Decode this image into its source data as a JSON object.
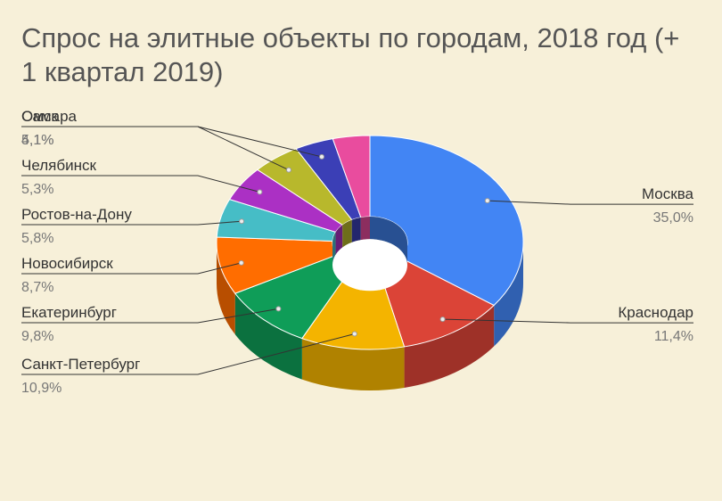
{
  "chart_data": {
    "type": "pie",
    "variant": "3d-donut",
    "title": "Спрос на элитные объекты по городам, 2018 год (+ 1 квартал 2019)",
    "slices": [
      {
        "label": "Москва",
        "value": 35.0,
        "display": "35,0%",
        "color": "#4285f4"
      },
      {
        "label": "Краснодар",
        "value": 11.4,
        "display": "11,4%",
        "color": "#db4437"
      },
      {
        "label": "Санкт-Петербург",
        "value": 10.9,
        "display": "10,9%",
        "color": "#f4b400"
      },
      {
        "label": "Екатеринбург",
        "value": 9.8,
        "display": "9,8%",
        "color": "#0f9d58"
      },
      {
        "label": "Новосибирск",
        "value": 8.7,
        "display": "8,7%",
        "color": "#ff6d00"
      },
      {
        "label": "Ростов-на-Дону",
        "value": 5.8,
        "display": "5,8%",
        "color": "#46bdc6"
      },
      {
        "label": "Челябинск",
        "value": 5.3,
        "display": "5,3%",
        "color": "#ab30c4"
      },
      {
        "label": "Самара",
        "value": 5.1,
        "display": "5,1%",
        "color": "#b8b82c"
      },
      {
        "label": "Омск",
        "value": 4.1,
        "display": "4,1%",
        "color": "#3b3fb6"
      },
      {
        "label": "",
        "value": 3.9,
        "display": "",
        "color": "#e94c9e"
      }
    ]
  }
}
